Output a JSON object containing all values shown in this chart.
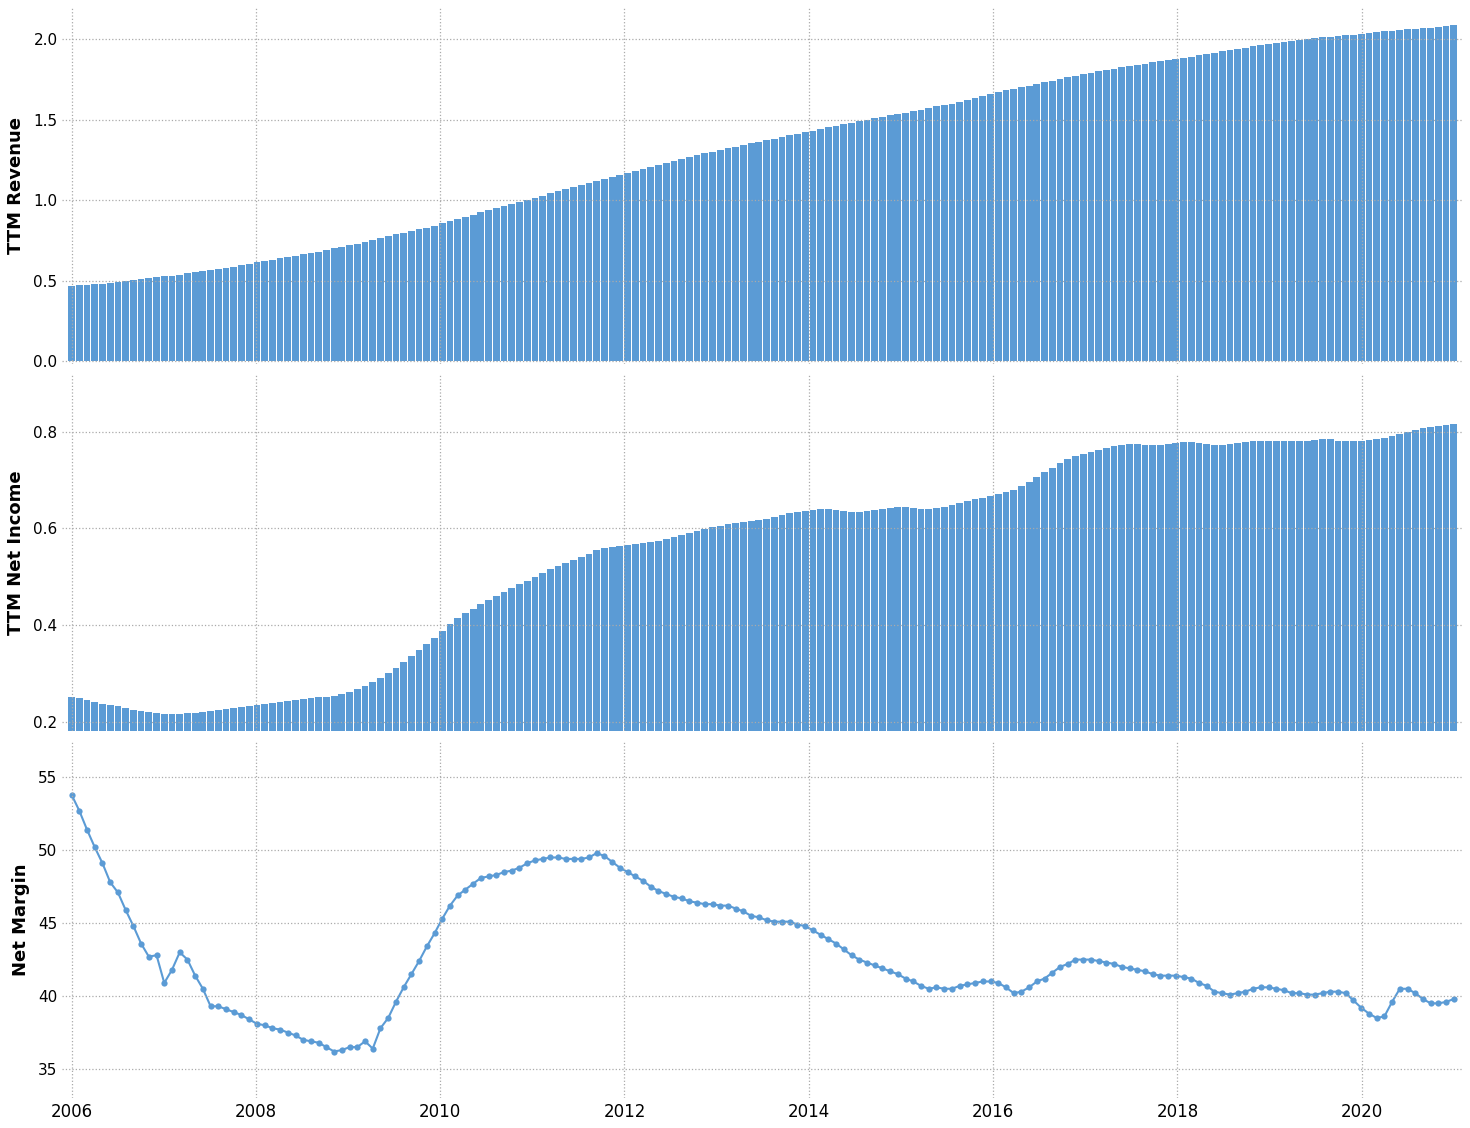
{
  "revenue": [
    0.468,
    0.471,
    0.475,
    0.478,
    0.482,
    0.486,
    0.492,
    0.496,
    0.502,
    0.508,
    0.515,
    0.521,
    0.528,
    0.532,
    0.538,
    0.545,
    0.552,
    0.558,
    0.565,
    0.57,
    0.578,
    0.585,
    0.595,
    0.605,
    0.615,
    0.622,
    0.63,
    0.638,
    0.645,
    0.655,
    0.665,
    0.672,
    0.68,
    0.69,
    0.7,
    0.71,
    0.72,
    0.73,
    0.742,
    0.754,
    0.766,
    0.778,
    0.788,
    0.798,
    0.808,
    0.818,
    0.83,
    0.842,
    0.855,
    0.868,
    0.882,
    0.896,
    0.91,
    0.924,
    0.938,
    0.952,
    0.966,
    0.978,
    0.99,
    1.002,
    1.015,
    1.028,
    1.042,
    1.055,
    1.068,
    1.08,
    1.092,
    1.105,
    1.118,
    1.13,
    1.142,
    1.155,
    1.168,
    1.18,
    1.192,
    1.205,
    1.218,
    1.23,
    1.242,
    1.255,
    1.268,
    1.28,
    1.292,
    1.302,
    1.312,
    1.322,
    1.332,
    1.342,
    1.352,
    1.362,
    1.372,
    1.382,
    1.392,
    1.402,
    1.412,
    1.422,
    1.432,
    1.442,
    1.452,
    1.462,
    1.472,
    1.482,
    1.49,
    1.5,
    1.51,
    1.518,
    1.526,
    1.535,
    1.544,
    1.552,
    1.562,
    1.572,
    1.582,
    1.59,
    1.6,
    1.612,
    1.624,
    1.636,
    1.648,
    1.66,
    1.672,
    1.682,
    1.692,
    1.702,
    1.712,
    1.722,
    1.732,
    1.742,
    1.752,
    1.762,
    1.772,
    1.782,
    1.792,
    1.8,
    1.808,
    1.816,
    1.824,
    1.832,
    1.84,
    1.848,
    1.856,
    1.862,
    1.868,
    1.876,
    1.884,
    1.892,
    1.9,
    1.908,
    1.916,
    1.924,
    1.932,
    1.94,
    1.948,
    1.956,
    1.964,
    1.97,
    1.976,
    1.982,
    1.988,
    1.994,
    2.0,
    2.006,
    2.012,
    2.016,
    2.02,
    2.024,
    2.028,
    2.032,
    2.038,
    2.044,
    2.048,
    2.052,
    2.056,
    2.06,
    2.064,
    2.068,
    2.072,
    2.078,
    2.082,
    2.086
  ],
  "net_income": [
    0.252,
    0.248,
    0.244,
    0.24,
    0.237,
    0.234,
    0.232,
    0.228,
    0.225,
    0.222,
    0.22,
    0.218,
    0.216,
    0.216,
    0.216,
    0.217,
    0.218,
    0.22,
    0.222,
    0.224,
    0.226,
    0.228,
    0.23,
    0.232,
    0.234,
    0.236,
    0.238,
    0.24,
    0.242,
    0.244,
    0.246,
    0.248,
    0.25,
    0.252,
    0.254,
    0.258,
    0.262,
    0.268,
    0.274,
    0.282,
    0.29,
    0.3,
    0.312,
    0.324,
    0.336,
    0.348,
    0.36,
    0.374,
    0.388,
    0.402,
    0.414,
    0.424,
    0.434,
    0.444,
    0.452,
    0.46,
    0.468,
    0.476,
    0.484,
    0.492,
    0.5,
    0.508,
    0.516,
    0.522,
    0.528,
    0.534,
    0.54,
    0.548,
    0.556,
    0.56,
    0.562,
    0.564,
    0.566,
    0.568,
    0.57,
    0.572,
    0.574,
    0.578,
    0.582,
    0.586,
    0.59,
    0.594,
    0.598,
    0.602,
    0.606,
    0.61,
    0.612,
    0.614,
    0.616,
    0.618,
    0.62,
    0.624,
    0.628,
    0.632,
    0.634,
    0.636,
    0.638,
    0.64,
    0.64,
    0.638,
    0.636,
    0.634,
    0.634,
    0.636,
    0.638,
    0.64,
    0.642,
    0.644,
    0.644,
    0.642,
    0.64,
    0.64,
    0.642,
    0.644,
    0.648,
    0.652,
    0.656,
    0.66,
    0.664,
    0.668,
    0.672,
    0.676,
    0.68,
    0.688,
    0.696,
    0.706,
    0.716,
    0.726,
    0.736,
    0.744,
    0.75,
    0.754,
    0.758,
    0.762,
    0.766,
    0.77,
    0.772,
    0.774,
    0.774,
    0.773,
    0.772,
    0.772,
    0.774,
    0.776,
    0.778,
    0.778,
    0.776,
    0.774,
    0.773,
    0.773,
    0.774,
    0.776,
    0.778,
    0.78,
    0.782,
    0.782,
    0.781,
    0.78,
    0.78,
    0.781,
    0.782,
    0.784,
    0.786,
    0.785,
    0.782,
    0.78,
    0.78,
    0.782,
    0.784,
    0.786,
    0.788,
    0.792,
    0.796,
    0.8,
    0.804,
    0.808,
    0.81,
    0.812,
    0.814,
    0.816
  ],
  "net_margin": [
    53.8,
    52.7,
    51.4,
    50.2,
    49.1,
    47.8,
    47.1,
    45.9,
    44.8,
    43.6,
    42.7,
    42.8,
    40.9,
    41.8,
    43.0,
    42.5,
    41.4,
    40.5,
    39.3,
    39.3,
    39.1,
    38.9,
    38.7,
    38.4,
    38.1,
    38.0,
    37.8,
    37.7,
    37.5,
    37.3,
    37.0,
    36.9,
    36.8,
    36.5,
    36.2,
    36.3,
    36.5,
    36.5,
    36.9,
    36.4,
    37.8,
    38.5,
    39.6,
    40.6,
    41.5,
    42.4,
    43.4,
    44.3,
    45.3,
    46.2,
    46.9,
    47.3,
    47.7,
    48.1,
    48.2,
    48.3,
    48.5,
    48.6,
    48.8,
    49.1,
    49.3,
    49.4,
    49.5,
    49.5,
    49.4,
    49.4,
    49.4,
    49.5,
    49.8,
    49.6,
    49.2,
    48.8,
    48.5,
    48.2,
    47.9,
    47.5,
    47.2,
    47.0,
    46.8,
    46.7,
    46.5,
    46.4,
    46.3,
    46.3,
    46.2,
    46.2,
    46.0,
    45.8,
    45.5,
    45.4,
    45.2,
    45.1,
    45.1,
    45.1,
    44.9,
    44.8,
    44.5,
    44.2,
    43.9,
    43.6,
    43.2,
    42.8,
    42.5,
    42.3,
    42.1,
    41.9,
    41.7,
    41.5,
    41.2,
    41.0,
    40.7,
    40.5,
    40.6,
    40.5,
    40.5,
    40.7,
    40.8,
    40.9,
    41.0,
    41.0,
    40.9,
    40.6,
    40.2,
    40.3,
    40.6,
    41.0,
    41.2,
    41.6,
    42.0,
    42.2,
    42.5,
    42.5,
    42.5,
    42.4,
    42.3,
    42.2,
    42.0,
    41.9,
    41.8,
    41.7,
    41.5,
    41.4,
    41.4,
    41.4,
    41.3,
    41.2,
    40.9,
    40.7,
    40.3,
    40.2,
    40.1,
    40.2,
    40.3,
    40.5,
    40.6,
    40.6,
    40.5,
    40.4,
    40.2,
    40.2,
    40.1,
    40.1,
    40.2,
    40.3,
    40.3,
    40.2,
    39.7,
    39.2,
    38.8,
    38.5,
    38.6,
    39.6,
    40.5,
    40.5,
    40.2,
    39.8,
    39.5,
    39.5,
    39.6,
    39.8
  ],
  "bar_color": "#5b9bd5",
  "line_color": "#5b9bd5",
  "bg_color": "#ffffff",
  "grid_color": "#aaaaaa",
  "ylabel1": "TTM Revenue",
  "ylabel2": "TTM Net Income",
  "ylabel3": "Net Margin",
  "yticks1": [
    0.0,
    0.5,
    1.0,
    1.5,
    2.0
  ],
  "yticks2": [
    0.2,
    0.4,
    0.6,
    0.8
  ],
  "yticks3": [
    35,
    40,
    45,
    50,
    55
  ],
  "ylim1": [
    -0.02,
    2.2
  ],
  "ylim2": [
    0.18,
    0.92
  ],
  "ylim3": [
    33.0,
    57.5
  ],
  "n_points": 180,
  "start_year": 2006.0,
  "end_year": 2021.0,
  "xtick_years": [
    2006,
    2008,
    2010,
    2012,
    2014,
    2016,
    2018,
    2020
  ]
}
